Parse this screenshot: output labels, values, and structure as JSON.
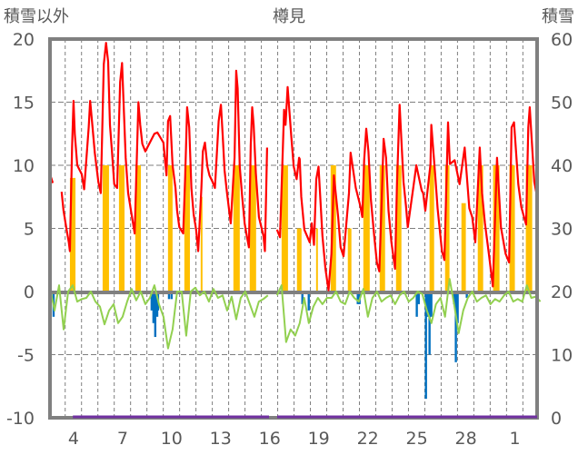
{
  "chart_data": {
    "type": "line",
    "title": "樽見",
    "ylabel_left": "積雪以外",
    "ylabel_right": "積雪",
    "ylim_left": [
      -10,
      20
    ],
    "ylim_right": [
      0,
      60
    ],
    "yticks_left": [
      "20",
      "15",
      "10",
      "5",
      "0",
      "-5",
      "-10"
    ],
    "yticks_right": [
      "60",
      "50",
      "40",
      "30",
      "20",
      "10",
      "0"
    ],
    "x_unit": "days from left edge",
    "xlim": [
      0,
      29.8
    ],
    "xticks": [
      {
        "label": "4",
        "x": 1.44
      },
      {
        "label": "7",
        "x": 4.44
      },
      {
        "label": "10",
        "x": 7.44
      },
      {
        "label": "13",
        "x": 10.44
      },
      {
        "label": "16",
        "x": 13.44
      },
      {
        "label": "19",
        "x": 16.44
      },
      {
        "label": "22",
        "x": 19.44
      },
      {
        "label": "25",
        "x": 22.44
      },
      {
        "label": "28",
        "x": 25.44
      },
      {
        "label": "1",
        "x": 28.44
      }
    ],
    "grid": {
      "vertical_dashed_every_day_from": 0.93,
      "horizontal_dashed": [
        15,
        10,
        5,
        -5
      ]
    },
    "colors": {
      "red": "#ff0000",
      "green": "#92d050",
      "orange": "#ffc000",
      "blue": "#0070c0",
      "purple": "#7030a0",
      "axis": "#808080"
    },
    "series_red": [
      [
        [
          0,
          9.3
        ],
        [
          0.17,
          8.6
        ]
      ],
      [
        [
          0.71,
          7.9
        ],
        [
          0.83,
          6.4
        ],
        [
          1.02,
          4.9
        ],
        [
          1.15,
          3.9
        ],
        [
          1.22,
          3.2
        ],
        [
          1.35,
          11.4
        ],
        [
          1.44,
          15.1
        ],
        [
          1.52,
          12.5
        ],
        [
          1.67,
          10
        ],
        [
          1.94,
          9.3
        ],
        [
          2.09,
          8.1
        ],
        [
          2.37,
          13
        ],
        [
          2.46,
          15.1
        ],
        [
          2.59,
          13.2
        ],
        [
          2.74,
          11
        ],
        [
          2.96,
          8.7
        ],
        [
          3.11,
          7.8
        ],
        [
          3.29,
          18
        ],
        [
          3.43,
          19.7
        ],
        [
          3.56,
          18.2
        ],
        [
          3.67,
          13.2
        ],
        [
          3.79,
          11.1
        ],
        [
          3.93,
          8.5
        ],
        [
          4.11,
          8.2
        ],
        [
          4.29,
          16.6
        ],
        [
          4.41,
          18.1
        ],
        [
          4.63,
          10.6
        ],
        [
          4.78,
          7.8
        ],
        [
          4.93,
          6.6
        ],
        [
          5.18,
          4.6
        ],
        [
          5.41,
          15
        ],
        [
          5.52,
          13.2
        ],
        [
          5.65,
          11.7
        ],
        [
          5.83,
          11.1
        ],
        [
          6.39,
          12.5
        ],
        [
          6.57,
          12.6
        ],
        [
          6.94,
          11.8
        ],
        [
          7.13,
          9.2
        ],
        [
          7.22,
          13.5
        ],
        [
          7.35,
          13.9
        ],
        [
          7.5,
          10
        ],
        [
          7.68,
          8.2
        ],
        [
          7.78,
          6.4
        ],
        [
          7.91,
          5.1
        ],
        [
          8.15,
          4.6
        ],
        [
          8.28,
          9.4
        ],
        [
          8.39,
          14.6
        ],
        [
          8.52,
          13
        ],
        [
          8.65,
          8.2
        ],
        [
          8.79,
          6.1
        ],
        [
          8.94,
          4.9
        ],
        [
          9.07,
          3.2
        ],
        [
          9.26,
          8.2
        ],
        [
          9.35,
          11.1
        ],
        [
          9.48,
          11.8
        ],
        [
          9.63,
          9.9
        ],
        [
          9.76,
          9.2
        ],
        [
          9.94,
          8.7
        ],
        [
          10.09,
          8.2
        ],
        [
          10.32,
          13.5
        ],
        [
          10.46,
          14.8
        ],
        [
          10.57,
          12.3
        ],
        [
          10.68,
          9.6
        ],
        [
          10.83,
          7.8
        ],
        [
          11.06,
          5.4
        ],
        [
          11.29,
          10.6
        ],
        [
          11.39,
          17.5
        ],
        [
          11.48,
          16.1
        ],
        [
          11.61,
          9.9
        ],
        [
          11.76,
          7.5
        ],
        [
          11.91,
          5.4
        ],
        [
          12.04,
          4.4
        ],
        [
          12.17,
          3.5
        ],
        [
          12.28,
          11.6
        ],
        [
          12.37,
          14.6
        ],
        [
          12.46,
          13.2
        ],
        [
          12.59,
          9.4
        ],
        [
          12.78,
          5.9
        ],
        [
          13.06,
          4.4
        ],
        [
          13.15,
          3.2
        ],
        [
          13.28,
          11.4
        ]
      ],
      [
        [
          13.89,
          4.9
        ],
        [
          14.07,
          4.3
        ],
        [
          14.32,
          14.4
        ],
        [
          14.41,
          13.2
        ],
        [
          14.54,
          16.2
        ],
        [
          14.76,
          12.3
        ],
        [
          14.91,
          9.9
        ],
        [
          15.09,
          8.9
        ],
        [
          15.24,
          10.6
        ],
        [
          15.28,
          10.5
        ],
        [
          15.37,
          7.5
        ],
        [
          15.56,
          4.9
        ],
        [
          15.89,
          3.9
        ],
        [
          16.02,
          5.4
        ],
        [
          16.15,
          3.7
        ],
        [
          16.29,
          8.9
        ],
        [
          16.43,
          9.9
        ],
        [
          16.67,
          4.4
        ],
        [
          16.85,
          1.8
        ],
        [
          17.04,
          0.1
        ],
        [
          17.22,
          3
        ],
        [
          17.37,
          9.2
        ],
        [
          17.63,
          5.9
        ],
        [
          17.78,
          3.5
        ],
        [
          17.96,
          2.8
        ],
        [
          18.29,
          7.8
        ],
        [
          18.39,
          11
        ],
        [
          18.71,
          8.2
        ],
        [
          18.98,
          6.8
        ],
        [
          19.11,
          5.9
        ],
        [
          19.22,
          10.4
        ],
        [
          19.35,
          12.9
        ],
        [
          19.48,
          11.1
        ],
        [
          19.63,
          7.3
        ],
        [
          19.82,
          4.6
        ],
        [
          20,
          2.3
        ],
        [
          20.15,
          1.6
        ],
        [
          20.28,
          6.8
        ],
        [
          20.41,
          12.1
        ],
        [
          20.56,
          10.6
        ],
        [
          20.71,
          6.4
        ],
        [
          20.89,
          3.9
        ],
        [
          21.11,
          1.8
        ],
        [
          21.22,
          8.2
        ],
        [
          21.39,
          14.8
        ],
        [
          21.63,
          8.7
        ],
        [
          21.78,
          6.8
        ],
        [
          21.89,
          5.1
        ],
        [
          22.22,
          8.2
        ],
        [
          22.41,
          10
        ],
        [
          22.74,
          8
        ],
        [
          22.83,
          7.8
        ],
        [
          22.96,
          6.4
        ],
        [
          23.28,
          10.1
        ],
        [
          23.33,
          13.2
        ],
        [
          23.57,
          9.2
        ],
        [
          23.71,
          6.6
        ],
        [
          23.83,
          5.1
        ],
        [
          23.98,
          3.2
        ],
        [
          24.13,
          2.5
        ],
        [
          24.35,
          13.4
        ],
        [
          24.46,
          10.1
        ],
        [
          24.76,
          10.4
        ],
        [
          25.06,
          8.5
        ],
        [
          25.37,
          11.4
        ],
        [
          25.65,
          6.6
        ],
        [
          25.83,
          5.9
        ],
        [
          26.02,
          3.9
        ],
        [
          26.29,
          11.4
        ],
        [
          26.43,
          7.8
        ],
        [
          26.61,
          5.4
        ],
        [
          26.85,
          3
        ],
        [
          27.09,
          0.4
        ],
        [
          27.35,
          10.6
        ],
        [
          27.59,
          5.1
        ],
        [
          27.87,
          3
        ],
        [
          28.09,
          2.3
        ],
        [
          28.24,
          13
        ],
        [
          28.39,
          13.4
        ],
        [
          28.65,
          8.5
        ],
        [
          28.83,
          6.7
        ],
        [
          29.13,
          5.3
        ],
        [
          29.26,
          13
        ],
        [
          29.35,
          14.6
        ],
        [
          29.63,
          8.7
        ],
        [
          29.8,
          7.5
        ]
      ]
    ],
    "series_green": {
      "x_start": 0,
      "x_step": 0.2778,
      "values": [
        0.3,
        -1.5,
        0.5,
        -3,
        0,
        0.5,
        -0.8,
        -0.6,
        -0.5,
        0,
        -0.8,
        -1.2,
        -2.6,
        -1.5,
        -1,
        -2.5,
        -2,
        -0.8,
        0.2,
        -0.7,
        0,
        -1,
        -0.5,
        0.5,
        -1,
        -2,
        -4.5,
        -3,
        0,
        0,
        -3.5,
        0,
        0.3,
        -0.3,
        0,
        -0.8,
        0.2,
        -0.5,
        -0.3,
        -1.5,
        -0.4,
        -2.2,
        -0.5,
        0,
        -1,
        -2,
        -0.8,
        -0.6,
        -0.3,
        null,
        -0.3,
        0.5,
        -4,
        -3,
        -3.5,
        -2.5,
        -0.5,
        -2.5,
        -1.2,
        -0.5,
        -1,
        -0.5,
        -0.5,
        0,
        -0.8,
        -1,
        0,
        -0.5,
        -0.8,
        0.2,
        -2,
        -0.5,
        0,
        -0.8,
        -0.5,
        -0.3,
        -1,
        -0.3,
        0,
        -0.8,
        -0.5,
        0,
        -0.2,
        -1.5,
        -2.5,
        -1,
        -0.5,
        -2,
        1,
        -1,
        -3.3,
        -1.5,
        -0.5,
        0,
        -0.8,
        -0.5,
        -0.3,
        -1,
        -0.6,
        -0.8,
        -0.3,
        0,
        -0.8,
        -0.6,
        -0.8,
        0.5,
        -0.5,
        -0.4,
        -0.8
      ]
    },
    "series_orange_bars": [
      [
        1.22,
        1.56,
        9
      ],
      [
        3.22,
        3.61,
        10
      ],
      [
        4.22,
        4.56,
        10
      ],
      [
        5.22,
        5.56,
        10
      ],
      [
        7.22,
        7.5,
        10
      ],
      [
        8.22,
        8.56,
        10
      ],
      [
        9.22,
        9.33,
        7.5
      ],
      [
        11.22,
        11.61,
        10
      ],
      [
        12.22,
        12.61,
        10
      ],
      [
        14.17,
        14.56,
        10
      ],
      [
        15.11,
        15.39,
        5
      ],
      [
        16.28,
        16.39,
        5
      ],
      [
        17.17,
        17.5,
        10
      ],
      [
        18.22,
        18.44,
        5
      ],
      [
        19.17,
        19.56,
        10
      ],
      [
        20.17,
        20.5,
        10
      ],
      [
        21.17,
        21.5,
        10
      ],
      [
        23.22,
        23.5,
        10
      ],
      [
        24.17,
        24.44,
        10
      ],
      [
        25.17,
        25.44,
        7
      ],
      [
        26.17,
        26.5,
        10
      ],
      [
        27.11,
        27.5,
        10
      ],
      [
        28.11,
        28.44,
        10
      ],
      [
        29.11,
        29.5,
        10
      ]
    ],
    "series_blue_bars": [
      [
        0.22,
        -2
      ],
      [
        6.22,
        -1.5
      ],
      [
        6.33,
        -2.5
      ],
      [
        6.44,
        -3.6
      ],
      [
        6.56,
        -2
      ],
      [
        6.61,
        -1.5
      ],
      [
        7.28,
        -0.6
      ],
      [
        7.44,
        -0.6
      ],
      [
        15.44,
        -1
      ],
      [
        15.83,
        -1.5
      ],
      [
        18.83,
        -1
      ],
      [
        18.94,
        -1
      ],
      [
        22.44,
        -2
      ],
      [
        22.56,
        -1
      ],
      [
        23.0,
        -8.5
      ],
      [
        23.11,
        -2
      ],
      [
        23.22,
        -5
      ],
      [
        23.33,
        -2
      ],
      [
        24.72,
        -1
      ],
      [
        24.83,
        -5.6
      ],
      [
        24.94,
        -2.5
      ],
      [
        25.5,
        -0.5
      ]
    ],
    "series_purple_snow_depth": [
      [
        [
          1.4,
          0
        ],
        [
          13.4,
          0
        ]
      ],
      [
        [
          13.9,
          0
        ],
        [
          29.8,
          0
        ]
      ]
    ]
  }
}
